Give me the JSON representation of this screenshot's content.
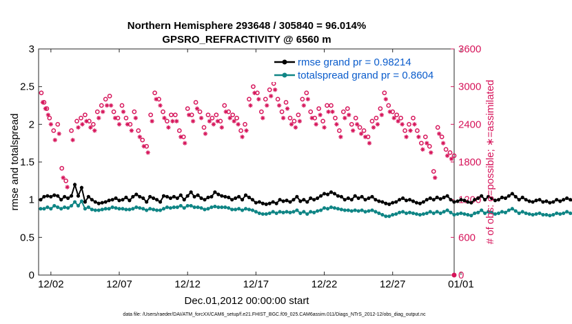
{
  "chart_data": {
    "type": "line",
    "title": "Northern Hemisphere 293648 / 305840 = 96.014%",
    "subtitle": "GPSRO_REFRACTIVITY @ 6560 m",
    "xlabel": "Dec.01,2012 00:00:00 start",
    "ylabel": "rmse and totalspread",
    "ylabel_right": "# of obs: o=possible; ∗=assimilated",
    "x_ticks": [
      "12/02",
      "12/07",
      "12/12",
      "12/17",
      "12/22",
      "12/27",
      "01/01"
    ],
    "y_ticks": [
      "0",
      "0.5",
      "1",
      "1.5",
      "2",
      "2.5",
      "3"
    ],
    "y_ticks_right": [
      "0",
      "600",
      "1200",
      "1800",
      "2400",
      "3000",
      "3600"
    ],
    "xlim_days": [
      0.6,
      31.0
    ],
    "ylim": [
      0,
      3
    ],
    "ylim_right": [
      0,
      3600
    ],
    "footnote": "data file: /Users/raeder/DAI/ATM_forcXX/CAM6_setup/f.e21.FHIST_BGC.f09_025.CAM6assim.011/Diags_NTrS_2012-12/obs_diag_output.nc",
    "legend_position": "top-right",
    "series": [
      {
        "name": "rmse grand pr = 0.98214",
        "color": "#000000",
        "marker": "dot",
        "x_start_day": 0.75,
        "x_step_day": 0.25,
        "values": [
          1.0,
          1.04,
          1.05,
          1.04,
          1.06,
          1.05,
          1.0,
          1.04,
          1.02,
          1.05,
          1.2,
          1.05,
          1.16,
          0.97,
          1.04,
          1.0,
          0.97,
          0.95,
          0.96,
          0.97,
          0.99,
          1.0,
          1.02,
          0.99,
          1.0,
          1.03,
          0.99,
          1.04,
          1.07,
          1.04,
          1.02,
          0.97,
          1.04,
          1.02,
          1.0,
          0.97,
          1.05,
          1.04,
          1.02,
          1.04,
          1.02,
          1.06,
          1.0,
          1.05,
          1.1,
          1.04,
          1.06,
          1.02,
          1.0,
          1.03,
          1.04,
          1.1,
          1.07,
          1.05,
          1.04,
          1.03,
          1.0,
          1.02,
          1.04,
          1.0,
          1.06,
          1.03,
          1.0,
          0.96,
          0.97,
          0.95,
          0.94,
          0.95,
          0.97,
          0.95,
          1.0,
          0.98,
          0.99,
          0.97,
          1.0,
          1.04,
          0.98,
          1.0,
          0.97,
          1.02,
          1.0,
          1.02,
          1.05,
          1.08,
          1.07,
          1.1,
          1.08,
          1.05,
          1.04,
          1.0,
          1.02,
          1.0,
          1.05,
          1.02,
          1.04,
          1.0,
          1.02,
          1.04,
          1.0,
          0.98,
          0.97,
          0.95,
          0.94,
          0.96,
          0.97,
          1.0,
          1.02,
          0.99,
          1.0,
          0.98,
          0.96,
          0.95,
          0.97,
          1.0,
          1.02,
          1.0,
          1.03,
          1.01,
          1.03,
          1.05,
          1.0,
          0.97,
          0.98,
          1.0,
          0.99,
          0.97,
          0.96,
          1.0,
          1.02,
          1.05,
          1.0,
          1.04,
          1.02,
          0.99,
          1.0,
          1.03,
          1.02,
          1.05,
          1.08,
          1.04,
          1.0,
          1.03,
          1.0,
          0.98,
          0.97,
          0.99,
          1.0,
          0.97,
          0.98,
          0.96,
          0.97,
          1.0,
          0.98,
          1.0,
          1.02,
          1.0,
          0.97,
          1.02,
          1.05,
          1.02,
          1.04,
          1.0,
          1.03,
          1.0,
          0.97,
          0.96,
          0.99,
          0.98,
          1.0,
          1.02,
          1.0,
          0.99,
          0.97,
          1.0,
          0.98,
          1.0,
          1.02,
          1.0,
          0.97,
          1.0,
          1.02,
          1.01,
          0.99,
          1.0,
          1.03,
          1.05,
          1.1,
          1.07,
          1.0,
          1.03,
          1.02,
          1.05,
          1.04,
          1.1,
          1.15,
          1.05,
          1.0,
          1.06,
          1.02,
          1.0,
          1.0,
          1.01,
          1.0,
          1.02,
          0.99,
          1.0,
          1.01,
          0.99,
          1.0,
          1.01,
          1.0,
          1.02,
          1.0,
          1.01,
          0.99,
          1.0,
          1.02,
          1.0,
          1.01,
          0.98,
          1.0,
          1.01,
          1.0,
          1.02,
          1.0,
          0.99,
          1.01,
          1.0,
          1.02,
          1.0,
          0.99,
          1.01,
          1.0,
          1.0,
          1.01,
          1.0,
          1.02,
          1.0,
          0.99,
          1.01,
          1.0,
          0.99,
          1.0,
          1.02,
          1.0,
          1.01,
          1.0
        ]
      },
      {
        "name": "totalspread grand pr = 0.8604",
        "color": "#0f8585",
        "marker": "dot",
        "x_start_day": 0.75,
        "x_step_day": 0.25,
        "values": [
          0.88,
          0.88,
          0.9,
          0.88,
          0.92,
          0.9,
          0.88,
          0.9,
          0.89,
          0.92,
          0.97,
          0.92,
          0.98,
          0.88,
          0.9,
          0.87,
          0.86,
          0.86,
          0.87,
          0.88,
          0.88,
          0.9,
          0.89,
          0.88,
          0.88,
          0.87,
          0.87,
          0.88,
          0.9,
          0.89,
          0.88,
          0.86,
          0.88,
          0.87,
          0.86,
          0.86,
          0.88,
          0.9,
          0.89,
          0.9,
          0.9,
          0.92,
          0.89,
          0.92,
          0.92,
          0.9,
          0.9,
          0.89,
          0.87,
          0.88,
          0.9,
          0.91,
          0.9,
          0.9,
          0.9,
          0.89,
          0.87,
          0.87,
          0.88,
          0.86,
          0.88,
          0.87,
          0.86,
          0.84,
          0.82,
          0.81,
          0.81,
          0.82,
          0.84,
          0.82,
          0.84,
          0.83,
          0.84,
          0.83,
          0.84,
          0.86,
          0.82,
          0.84,
          0.81,
          0.84,
          0.83,
          0.85,
          0.86,
          0.89,
          0.88,
          0.9,
          0.89,
          0.88,
          0.87,
          0.86,
          0.86,
          0.85,
          0.86,
          0.85,
          0.86,
          0.84,
          0.85,
          0.86,
          0.84,
          0.82,
          0.8,
          0.78,
          0.78,
          0.8,
          0.81,
          0.83,
          0.84,
          0.82,
          0.83,
          0.82,
          0.81,
          0.8,
          0.81,
          0.82,
          0.84,
          0.82,
          0.84,
          0.82,
          0.84,
          0.86,
          0.83,
          0.8,
          0.81,
          0.82,
          0.81,
          0.8,
          0.79,
          0.82,
          0.83,
          0.86,
          0.82,
          0.84,
          0.83,
          0.81,
          0.82,
          0.84,
          0.83,
          0.86,
          0.88,
          0.85,
          0.82,
          0.84,
          0.82,
          0.81,
          0.8,
          0.81,
          0.82,
          0.8,
          0.8,
          0.79,
          0.8,
          0.82,
          0.81,
          0.82,
          0.84,
          0.82,
          0.8,
          0.83,
          0.86,
          0.84,
          0.86,
          0.83,
          0.85,
          0.83,
          0.81,
          0.8,
          0.82,
          0.81,
          0.82,
          0.84,
          0.83,
          0.82,
          0.81,
          0.83,
          0.82,
          0.83,
          0.85,
          0.84,
          0.82,
          0.84,
          0.86,
          0.85,
          0.84,
          0.85,
          0.87,
          0.88,
          0.92,
          0.9,
          0.86,
          0.88,
          0.87,
          0.88,
          0.88,
          0.92,
          0.96,
          0.88,
          0.85,
          0.9,
          0.87,
          0.86,
          0.86,
          0.87,
          0.86,
          0.87,
          0.86,
          0.86,
          0.87,
          0.86,
          0.86,
          0.87,
          0.86,
          0.87,
          0.86,
          0.87,
          0.86,
          0.86,
          0.87,
          0.86,
          0.87,
          0.85,
          0.86,
          0.87,
          0.86,
          0.87,
          0.86,
          0.86,
          0.87,
          0.86,
          0.87,
          0.86,
          0.86,
          0.87,
          0.86,
          0.86,
          0.87,
          0.86,
          0.87,
          0.86,
          0.86,
          0.87,
          0.86,
          0.86,
          0.86,
          0.87,
          0.86,
          0.87,
          0.86
        ]
      },
      {
        "name": "possible",
        "color": "#d6145a",
        "marker": "circle",
        "axis": "right",
        "x": [
          0.8,
          1.0,
          1.2,
          1.4,
          1.7,
          2.0,
          2.3,
          2.6,
          3.0,
          3.4,
          3.7,
          4.0,
          4.3,
          4.6,
          4.9,
          5.2,
          5.5,
          5.8,
          6.1,
          6.4,
          6.7,
          7.0,
          7.3,
          7.6,
          7.9,
          8.2,
          8.5,
          8.8,
          9.1,
          9.4,
          9.7,
          10.0,
          10.3,
          10.6,
          10.9,
          11.2,
          11.5,
          11.8,
          12.1,
          12.4,
          12.7,
          13.0,
          13.3,
          13.6,
          13.9,
          14.2,
          14.5,
          14.8,
          15.1,
          15.4,
          15.7,
          16.0,
          16.3,
          16.6,
          16.9,
          17.2,
          17.5,
          17.8,
          18.1,
          18.4,
          18.7,
          19.0,
          19.3,
          19.6,
          19.9,
          20.2,
          20.5,
          20.8,
          21.1,
          21.4,
          21.7,
          22.0,
          22.3,
          22.6,
          22.9,
          23.2,
          23.5,
          23.8,
          24.1,
          24.4,
          24.7,
          25.0,
          25.3,
          25.6,
          25.9,
          26.2,
          26.5,
          26.8,
          27.1,
          27.4,
          27.7,
          28.0,
          28.3,
          28.6,
          28.9,
          29.2,
          29.5,
          29.8,
          30.1,
          30.4,
          30.7,
          31.0
        ],
        "values": [
          2900,
          2750,
          2650,
          2500,
          2300,
          2400,
          1700,
          1500,
          2300,
          2450,
          2500,
          2550,
          2450,
          2400,
          2600,
          2700,
          2800,
          2850,
          2600,
          2500,
          2700,
          2500,
          2400,
          2600,
          2300,
          2150,
          2050,
          2550,
          2900,
          2800,
          2600,
          2450,
          2550,
          2550,
          2300,
          2200,
          2650,
          2550,
          2750,
          2600,
          2350,
          2550,
          2500,
          2550,
          2450,
          2700,
          2600,
          2550,
          2500,
          2300,
          2400,
          2800,
          3000,
          2900,
          2600,
          2800,
          2950,
          3050,
          2800,
          2600,
          2750,
          2500,
          2450,
          2550,
          2800,
          2900,
          2600,
          2500,
          2650,
          2450,
          2700,
          2700,
          2500,
          2300,
          2600,
          2650,
          2400,
          2500,
          2350,
          2300,
          2200,
          2450,
          2500,
          2650,
          2900,
          2700,
          2600,
          2550,
          2500,
          2300,
          2400,
          2500,
          2300,
          2100,
          2200,
          2050,
          1650,
          2350,
          2200,
          2000,
          1950,
          1900
        ]
      },
      {
        "name": "assimilated",
        "color": "#d6145a",
        "marker": "asterisk",
        "axis": "right",
        "x": [
          0.9,
          1.1,
          1.3,
          1.5,
          1.8,
          2.1,
          2.4,
          2.7,
          3.1,
          3.5,
          3.8,
          4.1,
          4.4,
          4.7,
          5.0,
          5.3,
          5.6,
          5.9,
          6.2,
          6.5,
          6.8,
          7.1,
          7.4,
          7.7,
          8.0,
          8.3,
          8.6,
          8.9,
          9.2,
          9.5,
          9.8,
          10.1,
          10.4,
          10.7,
          11.0,
          11.3,
          11.6,
          11.9,
          12.2,
          12.5,
          12.8,
          13.1,
          13.4,
          13.7,
          14.0,
          14.3,
          14.6,
          14.9,
          15.2,
          15.5,
          15.8,
          16.1,
          16.4,
          16.7,
          17.0,
          17.3,
          17.6,
          17.9,
          18.2,
          18.5,
          18.8,
          19.1,
          19.4,
          19.7,
          20.0,
          20.3,
          20.6,
          20.9,
          21.2,
          21.5,
          21.8,
          22.1,
          22.4,
          22.7,
          23.0,
          23.3,
          23.6,
          23.9,
          24.2,
          24.5,
          24.8,
          25.1,
          25.4,
          25.7,
          26.0,
          26.3,
          26.6,
          26.9,
          27.2,
          27.5,
          27.8,
          28.1,
          28.4,
          28.7,
          29.0,
          29.3,
          29.6,
          29.9,
          30.2,
          30.5,
          30.8
        ],
        "values": [
          2750,
          2650,
          2550,
          2400,
          2150,
          2250,
          1550,
          1400,
          2150,
          2350,
          2400,
          2450,
          2350,
          2300,
          2500,
          2600,
          2700,
          2700,
          2500,
          2400,
          2600,
          2400,
          2300,
          2500,
          2200,
          2050,
          1950,
          2450,
          2800,
          2700,
          2500,
          2350,
          2450,
          2450,
          2200,
          2100,
          2550,
          2450,
          2650,
          2500,
          2250,
          2450,
          2400,
          2450,
          2350,
          2600,
          2500,
          2450,
          2400,
          2200,
          2300,
          2700,
          2900,
          2800,
          2500,
          2700,
          2850,
          2950,
          2700,
          2500,
          2650,
          2400,
          2350,
          2450,
          2700,
          2800,
          2500,
          2400,
          2550,
          2350,
          2600,
          2600,
          2400,
          2200,
          2500,
          2550,
          2300,
          2400,
          2250,
          2200,
          2100,
          2350,
          2400,
          2550,
          2800,
          2600,
          2500,
          2450,
          2400,
          2200,
          2300,
          2400,
          2200,
          2000,
          2100,
          1950,
          1550,
          2250,
          2100,
          1900,
          1850
        ]
      }
    ]
  }
}
